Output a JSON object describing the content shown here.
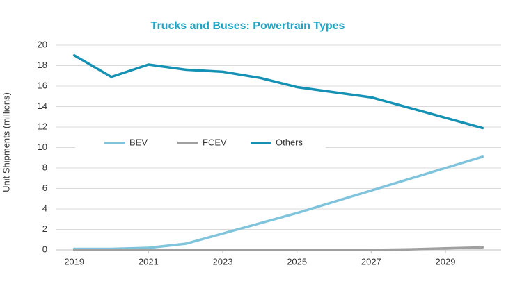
{
  "chart_data": {
    "type": "line",
    "title": "Trucks and Buses: Powertrain Types",
    "y_label": "Unit Shipments (millions)",
    "x": [
      2019,
      2020,
      2021,
      2022,
      2023,
      2024,
      2025,
      2026,
      2027,
      2028,
      2029,
      2030
    ],
    "xlim": [
      2018.5,
      2030.5
    ],
    "xticks": [
      2019,
      2021,
      2023,
      2025,
      2027,
      2029
    ],
    "ylim": [
      0,
      20
    ],
    "yticks": [
      0,
      2,
      4,
      6,
      8,
      10,
      12,
      14,
      16,
      18,
      20
    ],
    "grid": true,
    "legend": "middle-left",
    "series": [
      {
        "name": "BEV",
        "color": "#7fc3dc",
        "values": [
          0.1,
          0.1,
          0.2,
          0.6,
          1.6,
          2.6,
          3.6,
          4.7,
          5.8,
          6.9,
          8.0,
          9.1
        ]
      },
      {
        "name": "FCEV",
        "color": "#a0a0a0",
        "values": [
          0,
          0,
          0,
          0,
          0,
          0,
          0,
          0,
          0,
          0.05,
          0.15,
          0.25
        ]
      },
      {
        "name": "Others",
        "color": "#1591b4",
        "values": [
          19.0,
          16.9,
          18.1,
          17.6,
          17.4,
          16.8,
          15.9,
          15.4,
          14.9,
          13.9,
          12.9,
          11.9
        ]
      }
    ]
  }
}
